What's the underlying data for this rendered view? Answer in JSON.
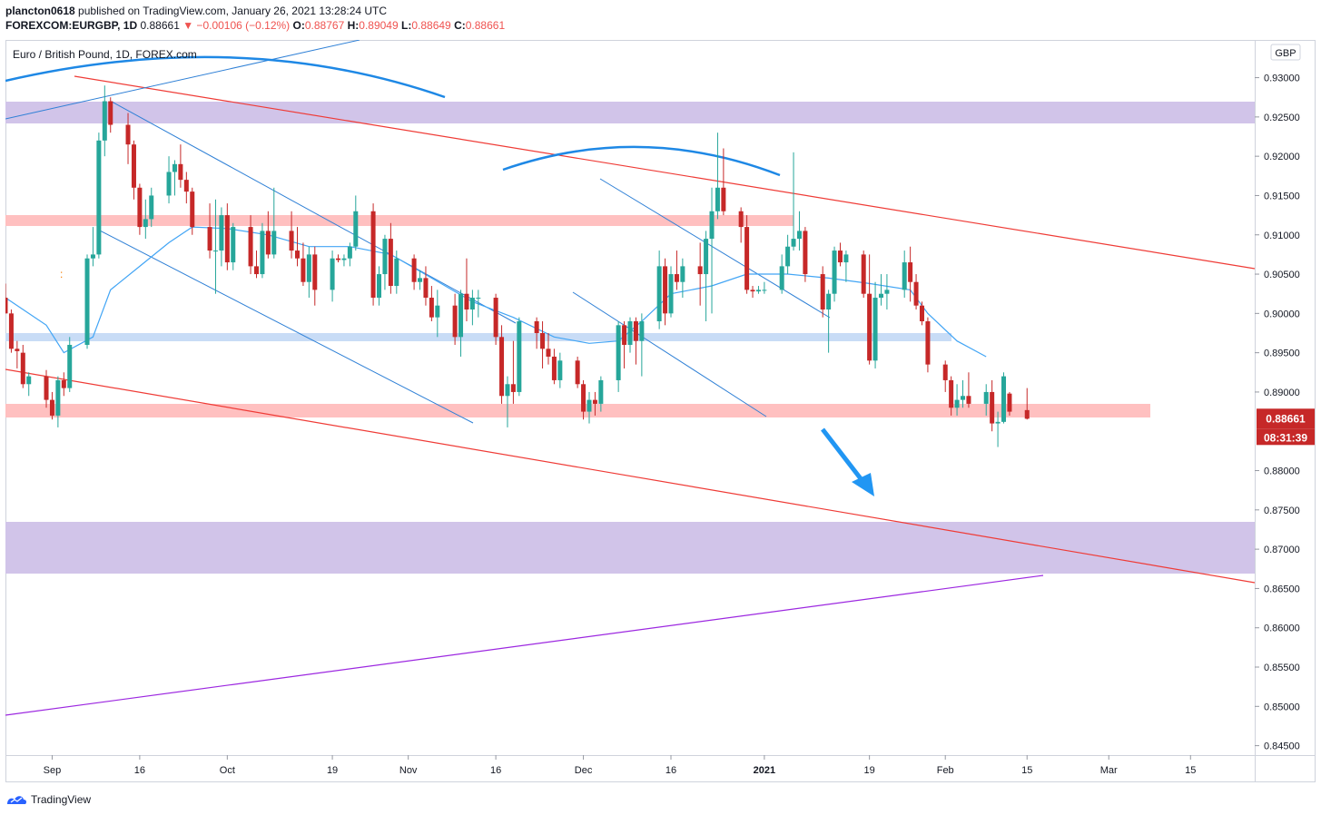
{
  "header": {
    "author": "plancton0618",
    "published_text": "published on TradingView.com, January 26, 2021 13:28:24 UTC",
    "symbol": "FOREXCOM:EURGBP, 1D",
    "last": "0.88661",
    "change": "▼ −0.00106 (−0.12%)",
    "o_label": "O:",
    "o": "0.88767",
    "h_label": "H:",
    "h": "0.89049",
    "l_label": "L:",
    "l": "0.88649",
    "c_label": "C:",
    "c": "0.88661"
  },
  "footer": {
    "brand": "TradingView"
  },
  "chart_data": {
    "type": "candlestick",
    "title": "Euro / British Pound, 1D, FOREX.com",
    "currency": "GBP",
    "y_range": [
      0.8438,
      0.9348
    ],
    "y_ticks": [
      "0.93000",
      "0.92500",
      "0.92000",
      "0.91500",
      "0.91000",
      "0.90500",
      "0.90000",
      "0.89500",
      "0.89000",
      "0.88000",
      "0.87500",
      "0.87000",
      "0.86500",
      "0.86000",
      "0.85500",
      "0.85000",
      "0.84500"
    ],
    "x_range": [
      "2020-08-24",
      "2021-03-26"
    ],
    "x_ticks": [
      {
        "label": "Sep",
        "date": "2020-09-01"
      },
      {
        "label": "16",
        "date": "2020-09-16"
      },
      {
        "label": "Oct",
        "date": "2020-10-01"
      },
      {
        "label": "19",
        "date": "2020-10-19"
      },
      {
        "label": "Nov",
        "date": "2020-11-01"
      },
      {
        "label": "16",
        "date": "2020-11-16"
      },
      {
        "label": "Dec",
        "date": "2020-12-01"
      },
      {
        "label": "16",
        "date": "2020-12-16"
      },
      {
        "label": "2021",
        "date": "2021-01-01"
      },
      {
        "label": "19",
        "date": "2021-01-19"
      },
      {
        "label": "Feb",
        "date": "2021-02-01"
      },
      {
        "label": "15",
        "date": "2021-02-15"
      },
      {
        "label": "Mar",
        "date": "2021-03-01"
      },
      {
        "label": "15",
        "date": "2021-03-15"
      }
    ],
    "last_price_label": "0.88661",
    "countdown_label": "08:31:39",
    "up_color": "#26a69a",
    "down_color": "#c62828",
    "candles": [
      {
        "d": "2020-08-24",
        "o": 0.902,
        "h": 0.9038,
        "l": 0.9,
        "c": 0.9
      },
      {
        "d": "2020-08-25",
        "o": 0.9,
        "h": 0.9005,
        "l": 0.895,
        "c": 0.8955
      },
      {
        "d": "2020-08-26",
        "o": 0.8955,
        "h": 0.8965,
        "l": 0.893,
        "c": 0.8952
      },
      {
        "d": "2020-08-27",
        "o": 0.895,
        "h": 0.896,
        "l": 0.8905,
        "c": 0.891
      },
      {
        "d": "2020-08-28",
        "o": 0.891,
        "h": 0.8925,
        "l": 0.8895,
        "c": 0.892
      },
      {
        "d": "2020-08-31",
        "o": 0.892,
        "h": 0.8928,
        "l": 0.888,
        "c": 0.889
      },
      {
        "d": "2020-09-01",
        "o": 0.889,
        "h": 0.89,
        "l": 0.8865,
        "c": 0.887
      },
      {
        "d": "2020-09-02",
        "o": 0.887,
        "h": 0.892,
        "l": 0.8855,
        "c": 0.8915
      },
      {
        "d": "2020-09-03",
        "o": 0.8915,
        "h": 0.8925,
        "l": 0.8895,
        "c": 0.8905
      },
      {
        "d": "2020-09-04",
        "o": 0.8905,
        "h": 0.897,
        "l": 0.89,
        "c": 0.896
      },
      {
        "d": "2020-09-07",
        "o": 0.896,
        "h": 0.9075,
        "l": 0.8955,
        "c": 0.907
      },
      {
        "d": "2020-09-08",
        "o": 0.907,
        "h": 0.911,
        "l": 0.906,
        "c": 0.9075
      },
      {
        "d": "2020-09-09",
        "o": 0.9075,
        "h": 0.923,
        "l": 0.907,
        "c": 0.922
      },
      {
        "d": "2020-09-10",
        "o": 0.922,
        "h": 0.929,
        "l": 0.92,
        "c": 0.927
      },
      {
        "d": "2020-09-11",
        "o": 0.927,
        "h": 0.9275,
        "l": 0.923,
        "c": 0.924
      },
      {
        "d": "2020-09-14",
        "o": 0.924,
        "h": 0.9255,
        "l": 0.919,
        "c": 0.9215
      },
      {
        "d": "2020-09-15",
        "o": 0.9215,
        "h": 0.922,
        "l": 0.9145,
        "c": 0.916
      },
      {
        "d": "2020-09-16",
        "o": 0.916,
        "h": 0.9165,
        "l": 0.91,
        "c": 0.911
      },
      {
        "d": "2020-09-17",
        "o": 0.911,
        "h": 0.9145,
        "l": 0.9095,
        "c": 0.912
      },
      {
        "d": "2020-09-18",
        "o": 0.912,
        "h": 0.916,
        "l": 0.911,
        "c": 0.915
      },
      {
        "d": "2020-09-21",
        "o": 0.915,
        "h": 0.92,
        "l": 0.914,
        "c": 0.918
      },
      {
        "d": "2020-09-22",
        "o": 0.918,
        "h": 0.9195,
        "l": 0.915,
        "c": 0.919
      },
      {
        "d": "2020-09-23",
        "o": 0.919,
        "h": 0.9215,
        "l": 0.916,
        "c": 0.917
      },
      {
        "d": "2020-09-24",
        "o": 0.917,
        "h": 0.918,
        "l": 0.914,
        "c": 0.9155
      },
      {
        "d": "2020-09-25",
        "o": 0.9155,
        "h": 0.916,
        "l": 0.91,
        "c": 0.911
      },
      {
        "d": "2020-09-28",
        "o": 0.911,
        "h": 0.914,
        "l": 0.907,
        "c": 0.908
      },
      {
        "d": "2020-09-29",
        "o": 0.908,
        "h": 0.9145,
        "l": 0.9025,
        "c": 0.908
      },
      {
        "d": "2020-09-30",
        "o": 0.908,
        "h": 0.9135,
        "l": 0.906,
        "c": 0.9125
      },
      {
        "d": "2020-10-01",
        "o": 0.9125,
        "h": 0.914,
        "l": 0.9055,
        "c": 0.9065
      },
      {
        "d": "2020-10-02",
        "o": 0.9065,
        "h": 0.9115,
        "l": 0.9055,
        "c": 0.911
      },
      {
        "d": "2020-10-05",
        "o": 0.911,
        "h": 0.9125,
        "l": 0.905,
        "c": 0.906
      },
      {
        "d": "2020-10-06",
        "o": 0.906,
        "h": 0.908,
        "l": 0.9045,
        "c": 0.905
      },
      {
        "d": "2020-10-07",
        "o": 0.905,
        "h": 0.9115,
        "l": 0.9045,
        "c": 0.9105
      },
      {
        "d": "2020-10-08",
        "o": 0.9105,
        "h": 0.913,
        "l": 0.907,
        "c": 0.9075
      },
      {
        "d": "2020-10-09",
        "o": 0.9075,
        "h": 0.916,
        "l": 0.907,
        "c": 0.9105
      },
      {
        "d": "2020-10-12",
        "o": 0.9105,
        "h": 0.913,
        "l": 0.907,
        "c": 0.908
      },
      {
        "d": "2020-10-13",
        "o": 0.908,
        "h": 0.911,
        "l": 0.906,
        "c": 0.907
      },
      {
        "d": "2020-10-14",
        "o": 0.907,
        "h": 0.909,
        "l": 0.9035,
        "c": 0.904
      },
      {
        "d": "2020-10-15",
        "o": 0.904,
        "h": 0.9085,
        "l": 0.902,
        "c": 0.9075
      },
      {
        "d": "2020-10-16",
        "o": 0.9075,
        "h": 0.9085,
        "l": 0.901,
        "c": 0.903
      },
      {
        "d": "2020-10-19",
        "o": 0.903,
        "h": 0.908,
        "l": 0.9015,
        "c": 0.907
      },
      {
        "d": "2020-10-20",
        "o": 0.907,
        "h": 0.9075,
        "l": 0.9065,
        "c": 0.9068
      },
      {
        "d": "2020-10-21",
        "o": 0.9068,
        "h": 0.9075,
        "l": 0.906,
        "c": 0.907
      },
      {
        "d": "2020-10-22",
        "o": 0.907,
        "h": 0.909,
        "l": 0.906,
        "c": 0.9085
      },
      {
        "d": "2020-10-23",
        "o": 0.9085,
        "h": 0.915,
        "l": 0.908,
        "c": 0.913
      },
      {
        "d": "2020-10-26",
        "o": 0.913,
        "h": 0.914,
        "l": 0.901,
        "c": 0.902
      },
      {
        "d": "2020-10-27",
        "o": 0.902,
        "h": 0.906,
        "l": 0.901,
        "c": 0.905
      },
      {
        "d": "2020-10-28",
        "o": 0.905,
        "h": 0.91,
        "l": 0.903,
        "c": 0.9095
      },
      {
        "d": "2020-10-29",
        "o": 0.9095,
        "h": 0.9115,
        "l": 0.9025,
        "c": 0.9035
      },
      {
        "d": "2020-10-30",
        "o": 0.9035,
        "h": 0.908,
        "l": 0.9025,
        "c": 0.907
      },
      {
        "d": "2020-11-02",
        "o": 0.907,
        "h": 0.9075,
        "l": 0.903,
        "c": 0.904
      },
      {
        "d": "2020-11-03",
        "o": 0.904,
        "h": 0.9055,
        "l": 0.903,
        "c": 0.9045
      },
      {
        "d": "2020-11-04",
        "o": 0.9045,
        "h": 0.906,
        "l": 0.901,
        "c": 0.902
      },
      {
        "d": "2020-11-05",
        "o": 0.902,
        "h": 0.9035,
        "l": 0.899,
        "c": 0.8995
      },
      {
        "d": "2020-11-06",
        "o": 0.8995,
        "h": 0.903,
        "l": 0.897,
        "c": 0.901
      },
      {
        "d": "2020-11-09",
        "o": 0.901,
        "h": 0.9025,
        "l": 0.896,
        "c": 0.897
      },
      {
        "d": "2020-11-10",
        "o": 0.897,
        "h": 0.903,
        "l": 0.8945,
        "c": 0.9025
      },
      {
        "d": "2020-11-11",
        "o": 0.9025,
        "h": 0.907,
        "l": 0.899,
        "c": 0.9005
      },
      {
        "d": "2020-11-12",
        "o": 0.9005,
        "h": 0.903,
        "l": 0.8985,
        "c": 0.902
      },
      {
        "d": "2020-11-13",
        "o": 0.902,
        "h": 0.903,
        "l": 0.8995,
        "c": 0.902
      },
      {
        "d": "2020-11-16",
        "o": 0.902,
        "h": 0.9025,
        "l": 0.896,
        "c": 0.897
      },
      {
        "d": "2020-11-17",
        "o": 0.897,
        "h": 0.8985,
        "l": 0.8885,
        "c": 0.8895
      },
      {
        "d": "2020-11-18",
        "o": 0.8895,
        "h": 0.892,
        "l": 0.8855,
        "c": 0.891
      },
      {
        "d": "2020-11-19",
        "o": 0.891,
        "h": 0.8965,
        "l": 0.8885,
        "c": 0.89
      },
      {
        "d": "2020-11-20",
        "o": 0.89,
        "h": 0.8995,
        "l": 0.8895,
        "c": 0.899
      },
      {
        "d": "2020-11-23",
        "o": 0.899,
        "h": 0.8995,
        "l": 0.8955,
        "c": 0.8975
      },
      {
        "d": "2020-11-24",
        "o": 0.8975,
        "h": 0.899,
        "l": 0.893,
        "c": 0.8955
      },
      {
        "d": "2020-11-25",
        "o": 0.8955,
        "h": 0.8975,
        "l": 0.8935,
        "c": 0.8945
      },
      {
        "d": "2020-11-26",
        "o": 0.8945,
        "h": 0.8955,
        "l": 0.891,
        "c": 0.8915
      },
      {
        "d": "2020-11-27",
        "o": 0.8915,
        "h": 0.895,
        "l": 0.8905,
        "c": 0.894
      },
      {
        "d": "2020-11-30",
        "o": 0.894,
        "h": 0.8945,
        "l": 0.8905,
        "c": 0.891
      },
      {
        "d": "2020-12-01",
        "o": 0.891,
        "h": 0.8915,
        "l": 0.8865,
        "c": 0.8875
      },
      {
        "d": "2020-12-02",
        "o": 0.8875,
        "h": 0.89,
        "l": 0.886,
        "c": 0.889
      },
      {
        "d": "2020-12-03",
        "o": 0.889,
        "h": 0.89,
        "l": 0.887,
        "c": 0.8885
      },
      {
        "d": "2020-12-04",
        "o": 0.8885,
        "h": 0.892,
        "l": 0.8875,
        "c": 0.8915
      },
      {
        "d": "2020-12-07",
        "o": 0.8915,
        "h": 0.899,
        "l": 0.89,
        "c": 0.8985
      },
      {
        "d": "2020-12-08",
        "o": 0.8985,
        "h": 0.899,
        "l": 0.893,
        "c": 0.896
      },
      {
        "d": "2020-12-09",
        "o": 0.896,
        "h": 0.8995,
        "l": 0.895,
        "c": 0.899
      },
      {
        "d": "2020-12-10",
        "o": 0.899,
        "h": 0.8995,
        "l": 0.8935,
        "c": 0.8965
      },
      {
        "d": "2020-12-11",
        "o": 0.8965,
        "h": 0.9,
        "l": 0.892,
        "c": 0.899
      },
      {
        "d": "2020-12-14",
        "o": 0.899,
        "h": 0.908,
        "l": 0.898,
        "c": 0.906
      },
      {
        "d": "2020-12-15",
        "o": 0.906,
        "h": 0.907,
        "l": 0.8985,
        "c": 0.9
      },
      {
        "d": "2020-12-16",
        "o": 0.9,
        "h": 0.906,
        "l": 0.8995,
        "c": 0.905
      },
      {
        "d": "2020-12-17",
        "o": 0.905,
        "h": 0.908,
        "l": 0.903,
        "c": 0.904
      },
      {
        "d": "2020-12-18",
        "o": 0.904,
        "h": 0.907,
        "l": 0.902,
        "c": 0.906
      },
      {
        "d": "2020-12-21",
        "o": 0.906,
        "h": 0.909,
        "l": 0.901,
        "c": 0.905
      },
      {
        "d": "2020-12-22",
        "o": 0.905,
        "h": 0.9105,
        "l": 0.899,
        "c": 0.9095
      },
      {
        "d": "2020-12-23",
        "o": 0.9095,
        "h": 0.916,
        "l": 0.9,
        "c": 0.913
      },
      {
        "d": "2020-12-24",
        "o": 0.913,
        "h": 0.923,
        "l": 0.912,
        "c": 0.916
      },
      {
        "d": "2020-12-25",
        "o": 0.916,
        "h": 0.921,
        "l": 0.9125,
        "c": 0.913
      },
      {
        "d": "2020-12-28",
        "o": 0.913,
        "h": 0.9135,
        "l": 0.909,
        "c": 0.911
      },
      {
        "d": "2020-12-29",
        "o": 0.911,
        "h": 0.9125,
        "l": 0.9025,
        "c": 0.903
      },
      {
        "d": "2020-12-30",
        "o": 0.903,
        "h": 0.9035,
        "l": 0.902,
        "c": 0.9028
      },
      {
        "d": "2020-12-31",
        "o": 0.9028,
        "h": 0.9035,
        "l": 0.9025,
        "c": 0.903
      },
      {
        "d": "2021-01-01",
        "o": 0.903,
        "h": 0.904,
        "l": 0.9025,
        "c": 0.903
      },
      {
        "d": "2021-01-04",
        "o": 0.903,
        "h": 0.9075,
        "l": 0.9025,
        "c": 0.906
      },
      {
        "d": "2021-01-05",
        "o": 0.906,
        "h": 0.91,
        "l": 0.905,
        "c": 0.9085
      },
      {
        "d": "2021-01-06",
        "o": 0.9085,
        "h": 0.9205,
        "l": 0.908,
        "c": 0.9095
      },
      {
        "d": "2021-01-07",
        "o": 0.9095,
        "h": 0.913,
        "l": 0.908,
        "c": 0.9105
      },
      {
        "d": "2021-01-08",
        "o": 0.9105,
        "h": 0.911,
        "l": 0.904,
        "c": 0.905
      },
      {
        "d": "2021-01-11",
        "o": 0.905,
        "h": 0.906,
        "l": 0.8995,
        "c": 0.9005
      },
      {
        "d": "2021-01-12",
        "o": 0.9005,
        "h": 0.903,
        "l": 0.895,
        "c": 0.9025
      },
      {
        "d": "2021-01-13",
        "o": 0.9025,
        "h": 0.9085,
        "l": 0.9015,
        "c": 0.908
      },
      {
        "d": "2021-01-14",
        "o": 0.908,
        "h": 0.909,
        "l": 0.906,
        "c": 0.9065
      },
      {
        "d": "2021-01-15",
        "o": 0.9065,
        "h": 0.908,
        "l": 0.904,
        "c": 0.9075
      },
      {
        "d": "2021-01-18",
        "o": 0.9075,
        "h": 0.908,
        "l": 0.902,
        "c": 0.9025
      },
      {
        "d": "2021-01-19",
        "o": 0.9025,
        "h": 0.9075,
        "l": 0.8935,
        "c": 0.894
      },
      {
        "d": "2021-01-20",
        "o": 0.894,
        "h": 0.904,
        "l": 0.893,
        "c": 0.902
      },
      {
        "d": "2021-01-21",
        "o": 0.902,
        "h": 0.905,
        "l": 0.901,
        "c": 0.9025
      },
      {
        "d": "2021-01-22",
        "o": 0.9025,
        "h": 0.905,
        "l": 0.9005,
        "c": 0.903
      },
      {
        "d": "2021-01-25",
        "o": 0.903,
        "h": 0.908,
        "l": 0.902,
        "c": 0.9065
      },
      {
        "d": "2021-01-26",
        "o": 0.9065,
        "h": 0.9085,
        "l": 0.9015,
        "c": 0.904
      },
      {
        "d": "2021-01-27",
        "o": 0.904,
        "h": 0.905,
        "l": 0.9005,
        "c": 0.901
      },
      {
        "d": "2021-01-28",
        "o": 0.901,
        "h": 0.9015,
        "l": 0.8985,
        "c": 0.899
      },
      {
        "d": "2021-01-29",
        "o": 0.899,
        "h": 0.8995,
        "l": 0.8925,
        "c": 0.8935
      },
      {
        "d": "2021-02-01",
        "o": 0.8935,
        "h": 0.894,
        "l": 0.89,
        "c": 0.8915
      },
      {
        "d": "2021-02-02",
        "o": 0.8915,
        "h": 0.892,
        "l": 0.887,
        "c": 0.888
      },
      {
        "d": "2021-02-03",
        "o": 0.888,
        "h": 0.891,
        "l": 0.887,
        "c": 0.889
      },
      {
        "d": "2021-02-04",
        "o": 0.889,
        "h": 0.8915,
        "l": 0.888,
        "c": 0.8895
      },
      {
        "d": "2021-02-05",
        "o": 0.8895,
        "h": 0.8925,
        "l": 0.888,
        "c": 0.8885
      },
      {
        "d": "2021-02-08",
        "o": 0.8885,
        "h": 0.891,
        "l": 0.887,
        "c": 0.89
      },
      {
        "d": "2021-02-09",
        "o": 0.89,
        "h": 0.8915,
        "l": 0.885,
        "c": 0.886
      },
      {
        "d": "2021-02-10",
        "o": 0.886,
        "h": 0.8875,
        "l": 0.883,
        "c": 0.8862
      },
      {
        "d": "2021-02-11",
        "o": 0.8862,
        "h": 0.8925,
        "l": 0.886,
        "c": 0.892
      },
      {
        "d": "2021-02-12",
        "o": 0.8898,
        "h": 0.89,
        "l": 0.887,
        "c": 0.8875
      },
      {
        "d": "2021-02-15",
        "o": 0.8877,
        "h": 0.8905,
        "l": 0.8865,
        "c": 0.8866
      }
    ],
    "ma": [
      [
        "2020-08-24",
        0.902
      ],
      [
        "2020-08-31",
        0.8985
      ],
      [
        "2020-09-03",
        0.895
      ],
      [
        "2020-09-08",
        0.897
      ],
      [
        "2020-09-11",
        0.903
      ],
      [
        "2020-09-16",
        0.906
      ],
      [
        "2020-09-21",
        0.909
      ],
      [
        "2020-09-25",
        0.911
      ],
      [
        "2020-10-01",
        0.9108
      ],
      [
        "2020-10-08",
        0.91
      ],
      [
        "2020-10-15",
        0.9085
      ],
      [
        "2020-10-22",
        0.9085
      ],
      [
        "2020-10-29",
        0.9075
      ],
      [
        "2020-11-05",
        0.9045
      ],
      [
        "2020-11-12",
        0.9015
      ],
      [
        "2020-11-19",
        0.8995
      ],
      [
        "2020-11-26",
        0.897
      ],
      [
        "2020-12-02",
        0.8962
      ],
      [
        "2020-12-07",
        0.8965
      ],
      [
        "2020-12-11",
        0.899
      ],
      [
        "2020-12-16",
        0.9025
      ],
      [
        "2020-12-23",
        0.9035
      ],
      [
        "2020-12-29",
        0.905
      ],
      [
        "2021-01-05",
        0.905
      ],
      [
        "2021-01-12",
        0.9045
      ],
      [
        "2021-01-19",
        0.9038
      ],
      [
        "2021-01-26",
        0.903
      ],
      [
        "2021-01-29",
        0.9
      ],
      [
        "2021-02-03",
        0.8965
      ],
      [
        "2021-02-08",
        0.8945
      ]
    ]
  }
}
